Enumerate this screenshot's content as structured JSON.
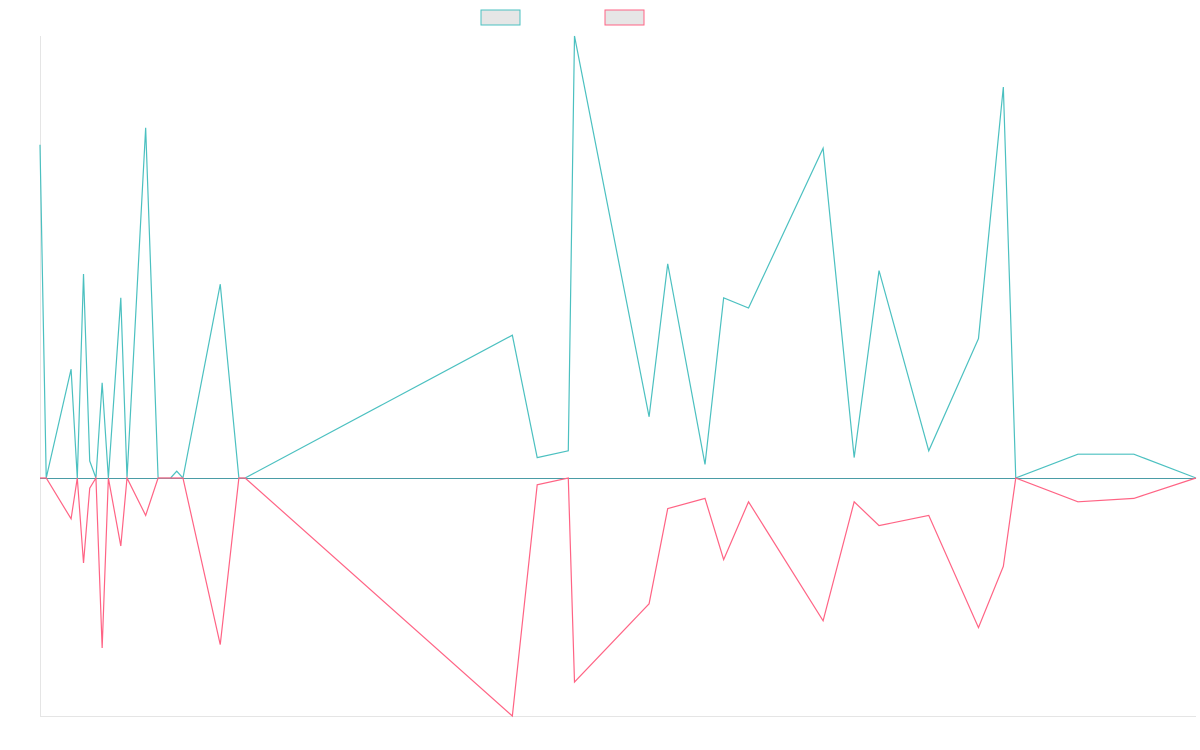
{
  "colors": {
    "series_a": "#4bc0c0",
    "series_b": "#ff6384",
    "legend_fill": "#e6e6e6",
    "axis": "#e5e5e5",
    "baseline": "#4a9ca6"
  },
  "chart_data": {
    "type": "line",
    "grid": false,
    "legend_position": "top-center",
    "x": [
      0,
      1,
      5,
      6,
      7,
      8,
      9,
      10,
      11,
      13,
      14,
      17,
      19,
      21,
      22,
      23,
      29,
      32,
      33,
      76,
      80,
      85,
      86,
      98,
      101,
      107,
      110,
      114,
      126,
      131,
      135,
      143,
      151,
      155,
      157,
      167,
      176,
      186
    ],
    "xlim": [
      0,
      186
    ],
    "ylim": [
      -100,
      100
    ],
    "series": [
      {
        "key": "a",
        "values": [
          98,
          0,
          32,
          0,
          60,
          5,
          0,
          28,
          0,
          53,
          0,
          103,
          0,
          0,
          2,
          0,
          57,
          0,
          0,
          42,
          6,
          8,
          130,
          18,
          63,
          4,
          53,
          50,
          97,
          6,
          61,
          8,
          41,
          115,
          0,
          7,
          7,
          0
        ]
      },
      {
        "key": "b",
        "values": [
          0,
          0,
          -12,
          0,
          -25,
          -3,
          0,
          -50,
          0,
          -20,
          0,
          -11,
          0,
          0,
          0,
          0,
          -49,
          0,
          0,
          -70,
          -2,
          0,
          -60,
          -37,
          -9,
          -6,
          -24,
          -7,
          -42,
          -7,
          -14,
          -11,
          -44,
          -26,
          0,
          -7,
          -6,
          0
        ]
      }
    ]
  }
}
